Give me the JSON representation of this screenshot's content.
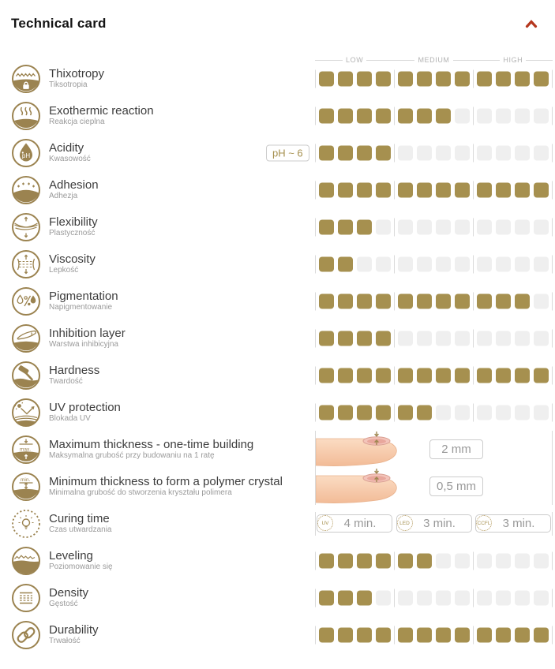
{
  "header": {
    "title": "Technical card",
    "collapse_icon": "chevron-up"
  },
  "colors": {
    "accent": "#b5371e",
    "gold": "#a6904f",
    "empty_square": "#efefef"
  },
  "scale": {
    "low": "LOW",
    "medium": "MEDIUM",
    "high": "HIGH",
    "max_squares": 12,
    "groups": 3
  },
  "chart_data": {
    "type": "bar",
    "title": "Technical card",
    "categories": [
      "Thixotropy",
      "Exothermic reaction",
      "Acidity",
      "Adhesion",
      "Flexibility",
      "Viscosity",
      "Pigmentation",
      "Inhibition layer",
      "Hardness",
      "UV protection",
      "Leveling",
      "Density",
      "Durability"
    ],
    "values": [
      12,
      7,
      4,
      12,
      3,
      2,
      11,
      4,
      12,
      6,
      6,
      3,
      12
    ],
    "ylim": [
      0,
      12
    ],
    "tick_labels": [
      "LOW",
      "MEDIUM",
      "HIGH"
    ]
  },
  "rows": [
    {
      "icon": "thixotropy-icon",
      "label": "Thixotropy",
      "sublabel": "Tiksotropia",
      "type": "rating",
      "value": 12
    },
    {
      "icon": "exothermic-icon",
      "label": "Exothermic reaction",
      "sublabel": "Reakcja cieplna",
      "type": "rating",
      "value": 7
    },
    {
      "icon": "acidity-icon",
      "label": "Acidity",
      "sublabel": "Kwasowość",
      "type": "rating",
      "value": 4,
      "badge": "pH ~ 6"
    },
    {
      "icon": "adhesion-icon",
      "label": "Adhesion",
      "sublabel": "Adhezja",
      "type": "rating",
      "value": 12
    },
    {
      "icon": "flexibility-icon",
      "label": "Flexibility",
      "sublabel": "Plastyczność",
      "type": "rating",
      "value": 3
    },
    {
      "icon": "viscosity-icon",
      "label": "Viscosity",
      "sublabel": "Lepkość",
      "type": "rating",
      "value": 2
    },
    {
      "icon": "pigmentation-icon",
      "label": "Pigmentation",
      "sublabel": "Napigmentowanie",
      "type": "rating",
      "value": 11
    },
    {
      "icon": "inhibition-layer-icon",
      "label": "Inhibition layer",
      "sublabel": "Warstwa inhibicyjna",
      "type": "rating",
      "value": 4
    },
    {
      "icon": "hardness-icon",
      "label": "Hardness",
      "sublabel": "Twardość",
      "type": "rating",
      "value": 12
    },
    {
      "icon": "uv-protection-icon",
      "label": "UV protection",
      "sublabel": "Blokada UV",
      "type": "rating",
      "value": 6
    },
    {
      "icon": "max-thickness-icon",
      "label": "Maximum thickness - one-time building",
      "sublabel": "Maksymalna grubość przy budowaniu na 1 ratę",
      "type": "measurement",
      "value_text": "2 mm"
    },
    {
      "icon": "min-thickness-icon",
      "label": "Minimum thickness to form a polymer crystal",
      "sublabel": "Minimalna grubość do stworzenia kryształu polimera",
      "type": "measurement",
      "value_text": "0,5 mm"
    },
    {
      "icon": "curing-time-icon",
      "label": "Curing time",
      "sublabel": "Czas utwardzania",
      "type": "times",
      "times": [
        {
          "lamp": "UV",
          "time": "4 min."
        },
        {
          "lamp": "LED",
          "time": "3 min."
        },
        {
          "lamp": "CCFL",
          "time": "3 min."
        }
      ]
    },
    {
      "icon": "leveling-icon",
      "label": "Leveling",
      "sublabel": "Poziomowanie się",
      "type": "rating",
      "value": 6
    },
    {
      "icon": "density-icon",
      "label": "Density",
      "sublabel": "Gęstość",
      "type": "rating",
      "value": 3
    },
    {
      "icon": "durability-icon",
      "label": "Durability",
      "sublabel": "Trwałość",
      "type": "rating",
      "value": 12
    }
  ]
}
